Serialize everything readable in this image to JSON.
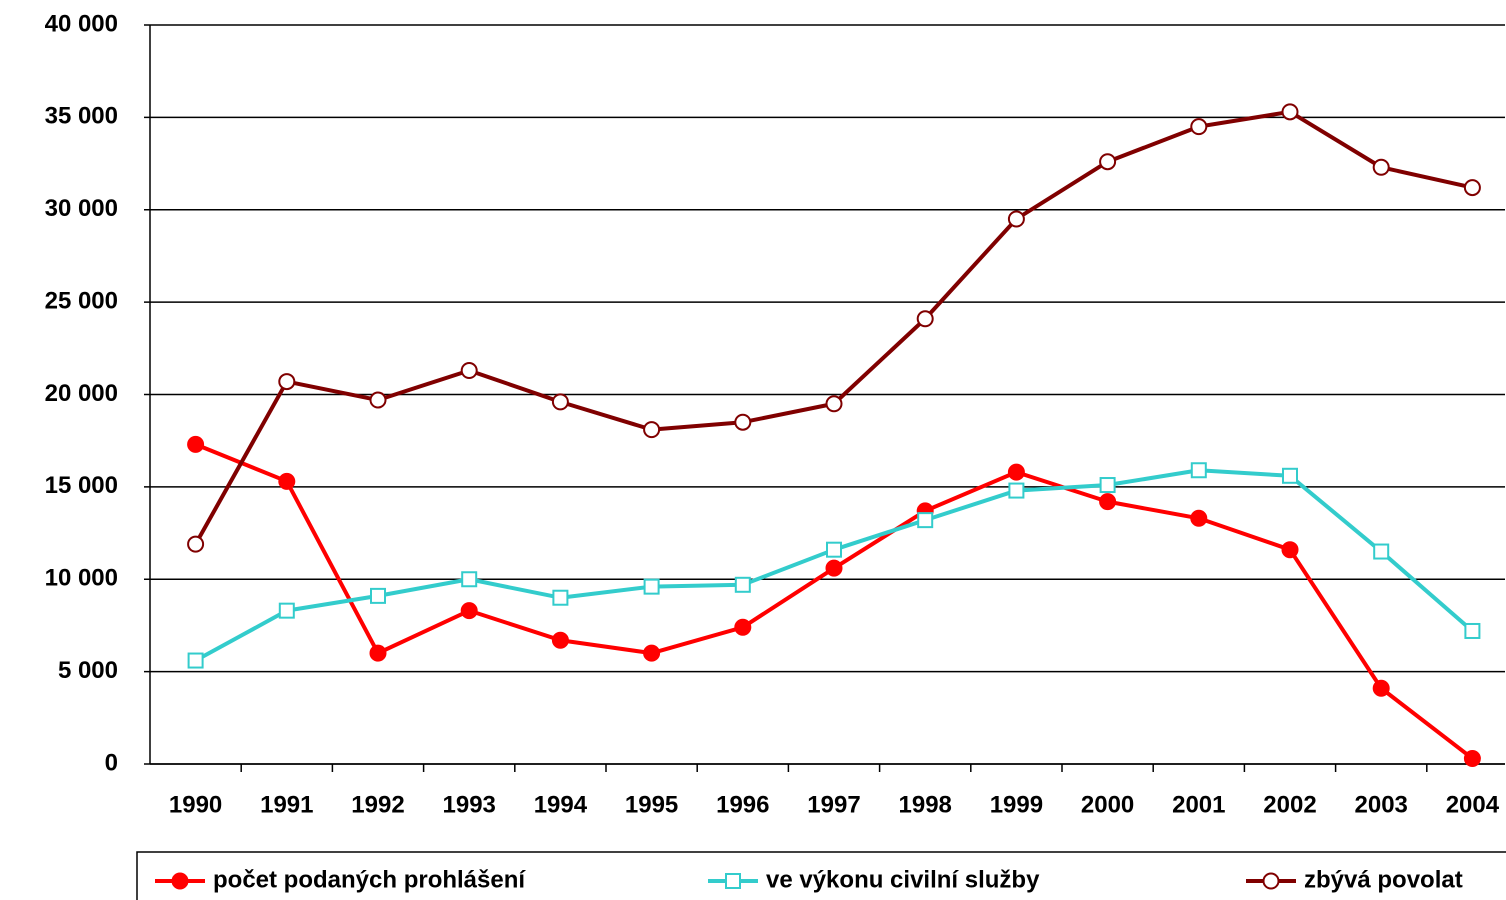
{
  "chart_data": {
    "type": "line",
    "categories": [
      "1990",
      "1991",
      "1992",
      "1993",
      "1994",
      "1995",
      "1996",
      "1997",
      "1998",
      "1999",
      "2000",
      "2001",
      "2002",
      "2003",
      "2004"
    ],
    "series": [
      {
        "name": "počet podaných prohlášení",
        "color": "#ff0000",
        "marker": "filled-circle",
        "values": [
          17300,
          15300,
          6000,
          8300,
          6700,
          6000,
          7400,
          10600,
          13700,
          15800,
          14200,
          13300,
          11600,
          4100,
          300
        ]
      },
      {
        "name": "ve výkonu civilní služby",
        "color": "#33cccc",
        "marker": "open-square",
        "values": [
          5600,
          8300,
          9100,
          10000,
          9000,
          9600,
          9700,
          11600,
          13200,
          14800,
          15100,
          15900,
          15600,
          11500,
          7200
        ]
      },
      {
        "name": "zbývá povolat",
        "color": "#800000",
        "marker": "open-circle",
        "values": [
          11900,
          20700,
          19700,
          21300,
          19600,
          18100,
          18500,
          19500,
          24100,
          29500,
          32600,
          34500,
          35300,
          32300,
          31200
        ]
      }
    ],
    "ylim": [
      0,
      40000
    ],
    "yticks": [
      {
        "value": 0,
        "label": "0"
      },
      {
        "value": 5000,
        "label": "5 000"
      },
      {
        "value": 10000,
        "label": "10 000"
      },
      {
        "value": 15000,
        "label": "15 000"
      },
      {
        "value": 20000,
        "label": "20 000"
      },
      {
        "value": 25000,
        "label": "25 000"
      },
      {
        "value": 30000,
        "label": "30 000"
      },
      {
        "value": 35000,
        "label": "35 000"
      },
      {
        "value": 40000,
        "label": "40 000"
      }
    ],
    "grid": true,
    "legend": "bottom"
  }
}
